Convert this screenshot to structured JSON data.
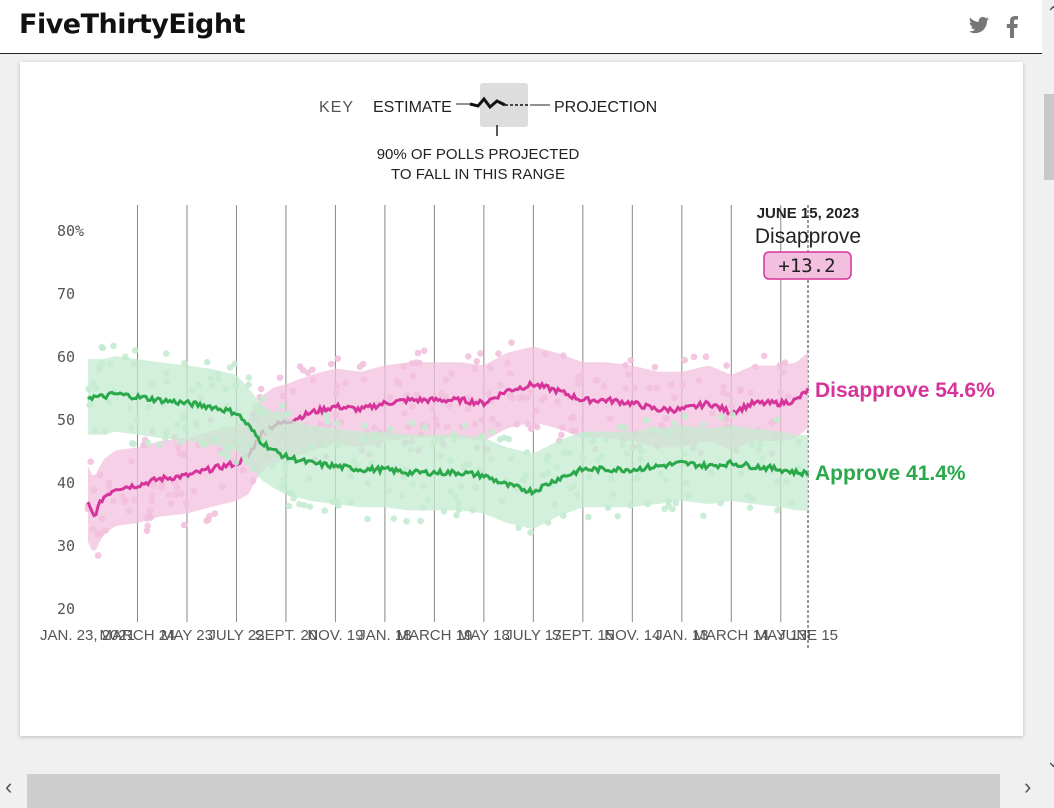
{
  "site": {
    "logo_text": "FiveThirtyEight",
    "brand_color": "#111111"
  },
  "social": [
    {
      "name": "twitter-icon"
    },
    {
      "name": "facebook-icon"
    }
  ],
  "key": {
    "label": "KEY",
    "estimate": "ESTIMATE",
    "projection": "PROJECTION",
    "range_line1": "90% OF POLLS PROJECTED",
    "range_line2": "TO FALL IN THIS RANGE"
  },
  "header_box": {
    "date": "JUNE 15, 2023",
    "label": "Disapprove",
    "margin": "+13.2"
  },
  "colors": {
    "disapprove": "#d6349b",
    "approve": "#2aa84a",
    "disapprove_light": "#f2c0de",
    "approve_light": "#c4ebd0"
  },
  "chart_data": {
    "type": "line",
    "title": "",
    "xlabel": "",
    "ylabel": "",
    "ylim": [
      20,
      80
    ],
    "y_ticks": [
      {
        "value": 80,
        "label": "80%"
      },
      {
        "value": 70,
        "label": "70"
      },
      {
        "value": 60,
        "label": "60"
      },
      {
        "value": 50,
        "label": "50"
      },
      {
        "value": 40,
        "label": "40"
      },
      {
        "value": 30,
        "label": "30"
      },
      {
        "value": 20,
        "label": "20"
      }
    ],
    "x_start": "2021-01-23",
    "x_end": "2023-06-15",
    "x_ticks": [
      {
        "date": "2021-01-23",
        "label": "JAN. 23, 2021"
      },
      {
        "date": "2021-03-24",
        "label": "MARCH 24"
      },
      {
        "date": "2021-05-23",
        "label": "MAY 23"
      },
      {
        "date": "2021-07-22",
        "label": "JULY 22"
      },
      {
        "date": "2021-09-20",
        "label": "SEPT. 20"
      },
      {
        "date": "2021-11-19",
        "label": "NOV. 19"
      },
      {
        "date": "2022-01-18",
        "label": "JAN. 18"
      },
      {
        "date": "2022-03-19",
        "label": "MARCH 19"
      },
      {
        "date": "2022-05-18",
        "label": "MAY 18"
      },
      {
        "date": "2022-07-17",
        "label": "JULY 17"
      },
      {
        "date": "2022-09-15",
        "label": "SEPT. 15"
      },
      {
        "date": "2022-11-14",
        "label": "NOV. 14"
      },
      {
        "date": "2023-01-13",
        "label": "JAN. 13"
      },
      {
        "date": "2023-03-14",
        "label": "MARCH 14"
      },
      {
        "date": "2023-05-13",
        "label": "MAY 13"
      },
      {
        "date": "2023-06-15",
        "label": "JUNE 15"
      }
    ],
    "series": [
      {
        "name": "Disapprove",
        "end_label": "Disapprove 54.6%",
        "points": [
          [
            "2021-01-23",
            36.5
          ],
          [
            "2021-01-30",
            34.5
          ],
          [
            "2021-02-10",
            37.5
          ],
          [
            "2021-02-25",
            39.0
          ],
          [
            "2021-03-24",
            39.5
          ],
          [
            "2021-04-20",
            40.5
          ],
          [
            "2021-05-23",
            41.0
          ],
          [
            "2021-06-20",
            42.0
          ],
          [
            "2021-07-22",
            43.0
          ],
          [
            "2021-08-05",
            44.0
          ],
          [
            "2021-08-20",
            47.5
          ],
          [
            "2021-09-05",
            49.0
          ],
          [
            "2021-09-20",
            49.5
          ],
          [
            "2021-10-20",
            51.0
          ],
          [
            "2021-11-19",
            52.0
          ],
          [
            "2021-12-20",
            51.5
          ],
          [
            "2022-01-18",
            52.5
          ],
          [
            "2022-02-15",
            53.0
          ],
          [
            "2022-03-19",
            53.0
          ],
          [
            "2022-04-20",
            53.0
          ],
          [
            "2022-05-18",
            52.5
          ],
          [
            "2022-06-15",
            54.5
          ],
          [
            "2022-07-17",
            55.5
          ],
          [
            "2022-08-15",
            54.5
          ],
          [
            "2022-09-15",
            53.0
          ],
          [
            "2022-10-15",
            53.0
          ],
          [
            "2022-11-14",
            52.5
          ],
          [
            "2022-12-15",
            51.5
          ],
          [
            "2023-01-13",
            51.5
          ],
          [
            "2023-02-15",
            52.5
          ],
          [
            "2023-03-14",
            51.0
          ],
          [
            "2023-04-10",
            52.5
          ],
          [
            "2023-05-13",
            52.5
          ],
          [
            "2023-06-01",
            53.0
          ],
          [
            "2023-06-15",
            54.6
          ]
        ]
      },
      {
        "name": "Approve",
        "end_label": "Approve 41.4%",
        "points": [
          [
            "2021-01-23",
            53.5
          ],
          [
            "2021-02-10",
            53.5
          ],
          [
            "2021-02-25",
            54.0
          ],
          [
            "2021-03-24",
            53.5
          ],
          [
            "2021-04-20",
            53.0
          ],
          [
            "2021-05-23",
            52.5
          ],
          [
            "2021-06-20",
            52.0
          ],
          [
            "2021-07-22",
            51.0
          ],
          [
            "2021-08-05",
            49.0
          ],
          [
            "2021-08-20",
            46.5
          ],
          [
            "2021-09-05",
            45.0
          ],
          [
            "2021-09-20",
            44.0
          ],
          [
            "2021-10-20",
            43.0
          ],
          [
            "2021-11-19",
            42.5
          ],
          [
            "2021-12-20",
            42.0
          ],
          [
            "2022-01-18",
            42.0
          ],
          [
            "2022-02-15",
            41.5
          ],
          [
            "2022-03-19",
            41.5
          ],
          [
            "2022-04-20",
            41.5
          ],
          [
            "2022-05-18",
            41.0
          ],
          [
            "2022-06-15",
            39.5
          ],
          [
            "2022-07-17",
            38.5
          ],
          [
            "2022-08-15",
            40.5
          ],
          [
            "2022-09-15",
            42.0
          ],
          [
            "2022-10-15",
            42.0
          ],
          [
            "2022-11-14",
            42.0
          ],
          [
            "2022-12-15",
            42.5
          ],
          [
            "2023-01-13",
            43.0
          ],
          [
            "2023-02-15",
            42.5
          ],
          [
            "2023-03-14",
            43.0
          ],
          [
            "2023-04-10",
            42.5
          ],
          [
            "2023-05-13",
            42.0
          ],
          [
            "2023-06-01",
            41.5
          ],
          [
            "2023-06-15",
            41.4
          ]
        ]
      }
    ],
    "grid": "vertical",
    "legend": "right"
  }
}
